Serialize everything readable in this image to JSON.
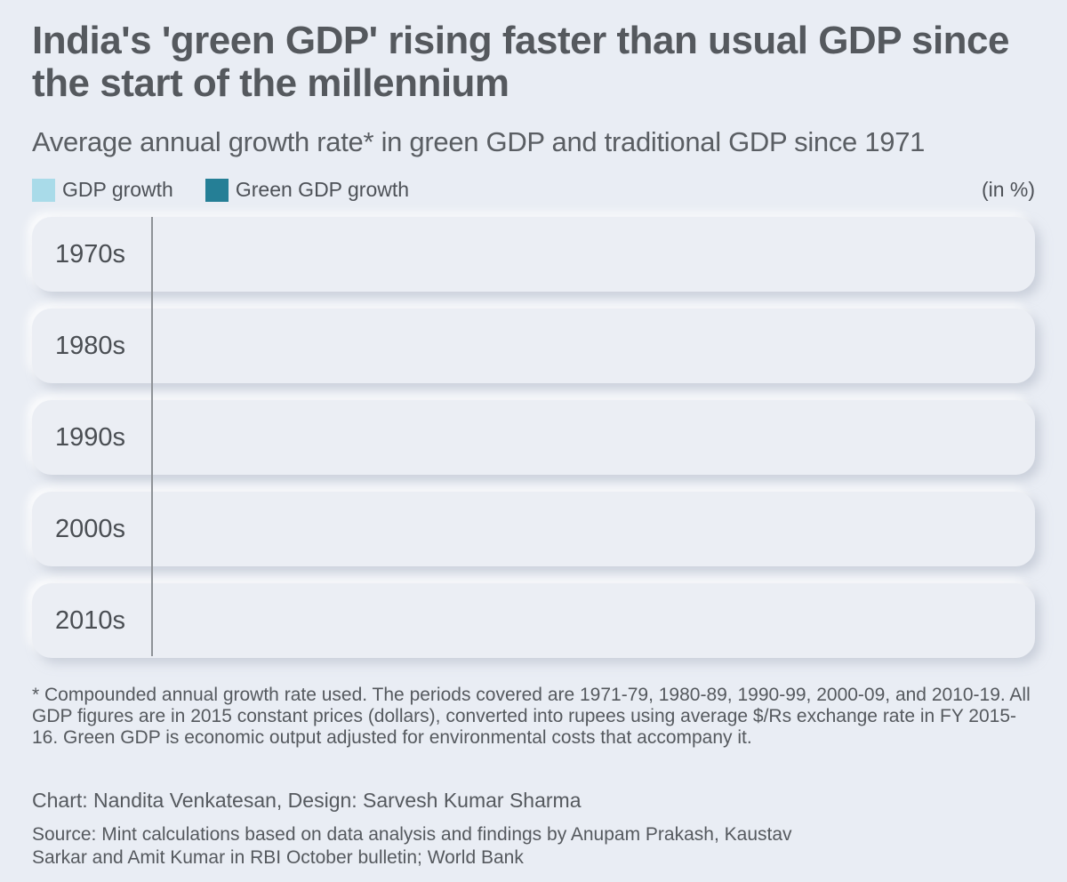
{
  "header": {
    "title": "India's 'green GDP' rising faster than usual GDP since the start of the millennium",
    "subtitle": "Average annual growth rate* in green GDP and traditional GDP since 1971"
  },
  "legend": {
    "gdp_label": "GDP growth",
    "green_label": "Green GDP growth",
    "unit": "(in %)"
  },
  "colors": {
    "gdp": "#a9dbe9",
    "green_gdp": "#257f96",
    "axis": "#8e9297",
    "background": "#e9edf4"
  },
  "chart_data": {
    "type": "bar",
    "orientation": "horizontal",
    "title": "India's 'green GDP' rising faster than usual GDP since the start of the millennium",
    "subtitle": "Average annual growth rate* in green GDP and traditional GDP since 1971",
    "unit": "(in %)",
    "categories": [
      "1970s",
      "1980s",
      "1990s",
      "2000s",
      "2010s"
    ],
    "series": [
      {
        "name": "GDP growth",
        "values": [
          null,
          null,
          null,
          null,
          null
        ]
      },
      {
        "name": "Green GDP growth",
        "values": [
          null,
          null,
          null,
          null,
          null
        ]
      }
    ],
    "xlim": [
      0,
      10
    ],
    "legend_position": "top-left"
  },
  "footer": {
    "note": "* Compounded annual growth rate used. The periods covered are 1971-79, 1980-89, 1990-99, 2000-09, and 2010-19. All GDP figures are in 2015 constant prices (dollars), converted into rupees using average $/Rs exchange rate in FY 2015-16. Green GDP is economic output adjusted for environmental costs that accompany it.",
    "credit": "Chart: Nandita Venkatesan, Design: Sarvesh Kumar Sharma",
    "source": "Source: Mint calculations based on data analysis and findings by Anupam Prakash, Kaustav Sarkar and Amit Kumar in RBI October bulletin; World Bank"
  }
}
